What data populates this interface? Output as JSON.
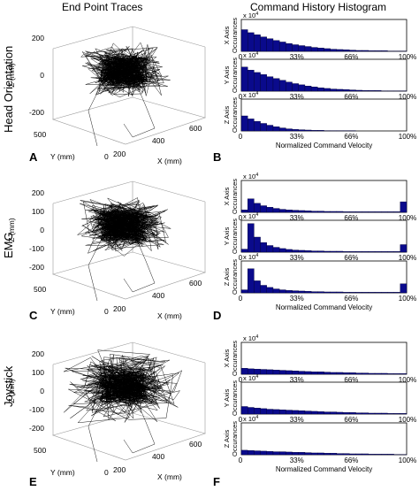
{
  "headers": {
    "left": "End Point Traces",
    "right": "Command History Histogram"
  },
  "rows": [
    {
      "label": "Head Orientation",
      "trace_letter": "A",
      "hist_letter": "B",
      "trace_axes": {
        "z_label": "Z (mm)",
        "y_label": "Y (mm)",
        "x_label": "X (mm)",
        "z_ticks": [
          "200",
          "0",
          "-200"
        ],
        "y_ticks": [
          "500",
          "0"
        ],
        "x_ticks": [
          "0",
          "200",
          "400",
          "600"
        ]
      }
    },
    {
      "label": "EMG",
      "trace_letter": "C",
      "hist_letter": "D",
      "trace_axes": {
        "z_label": "Z (mm)",
        "y_label": "Y (mm)",
        "x_label": "X (mm)",
        "z_ticks": [
          "200",
          "100",
          "0",
          "-100",
          "-200"
        ],
        "y_ticks": [
          "500",
          "0"
        ],
        "x_ticks": [
          "0",
          "200",
          "400",
          "600"
        ]
      }
    },
    {
      "label": "Joystick",
      "trace_letter": "E",
      "hist_letter": "F",
      "trace_axes": {
        "z_label": "Z (mm)",
        "y_label": "Y (mm)",
        "x_label": "X (mm)",
        "z_ticks": [
          "200",
          "100",
          "0",
          "-100",
          "-200"
        ],
        "y_ticks": [
          "500",
          "0"
        ],
        "x_ticks": [
          "0",
          "200",
          "400",
          "600"
        ]
      }
    }
  ],
  "chart_data": [
    {
      "type": "bar",
      "panel": "B",
      "axis": "X Axis",
      "ylabel": "X Axis Occurances",
      "multiplier": "x 10^4",
      "xlabel": "",
      "x_ticks": [
        "0",
        "33%",
        "66%",
        "100%"
      ],
      "ylim": [
        0,
        1
      ],
      "values": [
        0.72,
        0.62,
        0.55,
        0.48,
        0.42,
        0.36,
        0.31,
        0.26,
        0.22,
        0.19,
        0.16,
        0.13,
        0.11,
        0.09,
        0.07,
        0.06,
        0.05,
        0.04,
        0.03,
        0.03,
        0.02,
        0.02,
        0.02,
        0.01,
        0.01,
        0.01
      ]
    },
    {
      "type": "bar",
      "panel": "B",
      "axis": "Y Axis",
      "ylabel": "Y Axis Occurances",
      "multiplier": "x 10^4",
      "xlabel": "",
      "x_ticks": [
        "0",
        "33%",
        "66%",
        "100%"
      ],
      "ylim": [
        0,
        1
      ],
      "values": [
        0.8,
        0.7,
        0.62,
        0.55,
        0.48,
        0.42,
        0.36,
        0.3,
        0.25,
        0.21,
        0.17,
        0.14,
        0.11,
        0.09,
        0.07,
        0.06,
        0.05,
        0.04,
        0.03,
        0.02,
        0.02,
        0.02,
        0.01,
        0.01,
        0.01,
        0.01
      ]
    },
    {
      "type": "bar",
      "panel": "B",
      "axis": "Z Axis",
      "ylabel": "Z Axis Occurances",
      "multiplier": "x 10^4",
      "xlabel": "Normalized Command Velocity",
      "x_ticks": [
        "0",
        "33%",
        "66%",
        "100%"
      ],
      "ylim": [
        0,
        1
      ],
      "values": [
        0.5,
        0.4,
        0.32,
        0.25,
        0.19,
        0.14,
        0.1,
        0.07,
        0.05,
        0.04,
        0.03,
        0.02,
        0.02,
        0.01,
        0.01,
        0.01,
        0.01,
        0.01,
        0.0,
        0.0,
        0.0,
        0.0,
        0.0,
        0.0,
        0.0,
        0.0
      ]
    },
    {
      "type": "bar",
      "panel": "D",
      "axis": "X Axis",
      "ylabel": "X Axis Occurances",
      "multiplier": "x 10^4",
      "xlabel": "",
      "x_ticks": [
        "0",
        "33%",
        "66%",
        "100%"
      ],
      "ylim": [
        0,
        1
      ],
      "values": [
        0.08,
        0.45,
        0.3,
        0.22,
        0.17,
        0.13,
        0.1,
        0.08,
        0.07,
        0.06,
        0.05,
        0.04,
        0.04,
        0.03,
        0.03,
        0.03,
        0.02,
        0.02,
        0.02,
        0.02,
        0.02,
        0.02,
        0.02,
        0.02,
        0.02,
        0.35
      ]
    },
    {
      "type": "bar",
      "panel": "D",
      "axis": "Y Axis",
      "ylabel": "Y Axis Occurances",
      "multiplier": "x 10^4",
      "xlabel": "",
      "x_ticks": [
        "0",
        "33%",
        "66%",
        "100%"
      ],
      "ylim": [
        0,
        1
      ],
      "values": [
        0.1,
        0.95,
        0.5,
        0.32,
        0.22,
        0.16,
        0.12,
        0.09,
        0.07,
        0.06,
        0.05,
        0.04,
        0.04,
        0.03,
        0.03,
        0.03,
        0.02,
        0.02,
        0.02,
        0.02,
        0.02,
        0.02,
        0.02,
        0.02,
        0.02,
        0.25
      ]
    },
    {
      "type": "bar",
      "panel": "D",
      "axis": "Z Axis",
      "ylabel": "Z Axis Occurances",
      "multiplier": "x 10^4",
      "xlabel": "Normalized Command Velocity",
      "x_ticks": [
        "0",
        "33%",
        "66%",
        "100%"
      ],
      "ylim": [
        0,
        1
      ],
      "values": [
        0.1,
        0.8,
        0.4,
        0.25,
        0.18,
        0.13,
        0.1,
        0.08,
        0.07,
        0.06,
        0.05,
        0.04,
        0.04,
        0.03,
        0.03,
        0.03,
        0.02,
        0.02,
        0.02,
        0.02,
        0.02,
        0.02,
        0.02,
        0.02,
        0.02,
        0.3
      ]
    },
    {
      "type": "bar",
      "panel": "F",
      "axis": "X Axis",
      "ylabel": "X Axis Occurances",
      "multiplier": "x 10^4",
      "xlabel": "",
      "x_ticks": [
        "0",
        "33%",
        "66%",
        "100%"
      ],
      "ylim": [
        0,
        1
      ],
      "values": [
        0.2,
        0.18,
        0.17,
        0.16,
        0.15,
        0.14,
        0.13,
        0.12,
        0.11,
        0.1,
        0.09,
        0.08,
        0.08,
        0.07,
        0.06,
        0.06,
        0.05,
        0.05,
        0.04,
        0.04,
        0.03,
        0.03,
        0.03,
        0.02,
        0.02,
        0.02
      ]
    },
    {
      "type": "bar",
      "panel": "F",
      "axis": "Y Axis",
      "ylabel": "Y Axis Occurances",
      "multiplier": "x 10^4",
      "xlabel": "",
      "x_ticks": [
        "0",
        "33%",
        "66%",
        "100%"
      ],
      "ylim": [
        0,
        1
      ],
      "values": [
        0.25,
        0.22,
        0.2,
        0.18,
        0.16,
        0.15,
        0.14,
        0.13,
        0.12,
        0.11,
        0.1,
        0.09,
        0.08,
        0.07,
        0.07,
        0.06,
        0.05,
        0.05,
        0.04,
        0.04,
        0.03,
        0.03,
        0.03,
        0.02,
        0.02,
        0.02
      ]
    },
    {
      "type": "bar",
      "panel": "F",
      "axis": "Z Axis",
      "ylabel": "Z Axis Occurances",
      "multiplier": "x 10^4",
      "xlabel": "Normalized Command Velocity",
      "x_ticks": [
        "0",
        "33%",
        "66%",
        "100%"
      ],
      "ylim": [
        0,
        1
      ],
      "values": [
        0.15,
        0.14,
        0.13,
        0.12,
        0.11,
        0.1,
        0.1,
        0.09,
        0.08,
        0.08,
        0.07,
        0.06,
        0.06,
        0.05,
        0.05,
        0.04,
        0.04,
        0.03,
        0.03,
        0.03,
        0.02,
        0.02,
        0.02,
        0.02,
        0.01,
        0.01
      ]
    }
  ],
  "colors": {
    "bar_fill": "#0a0a8c",
    "bar_stroke": "#000033",
    "trace_line": "#000000"
  }
}
